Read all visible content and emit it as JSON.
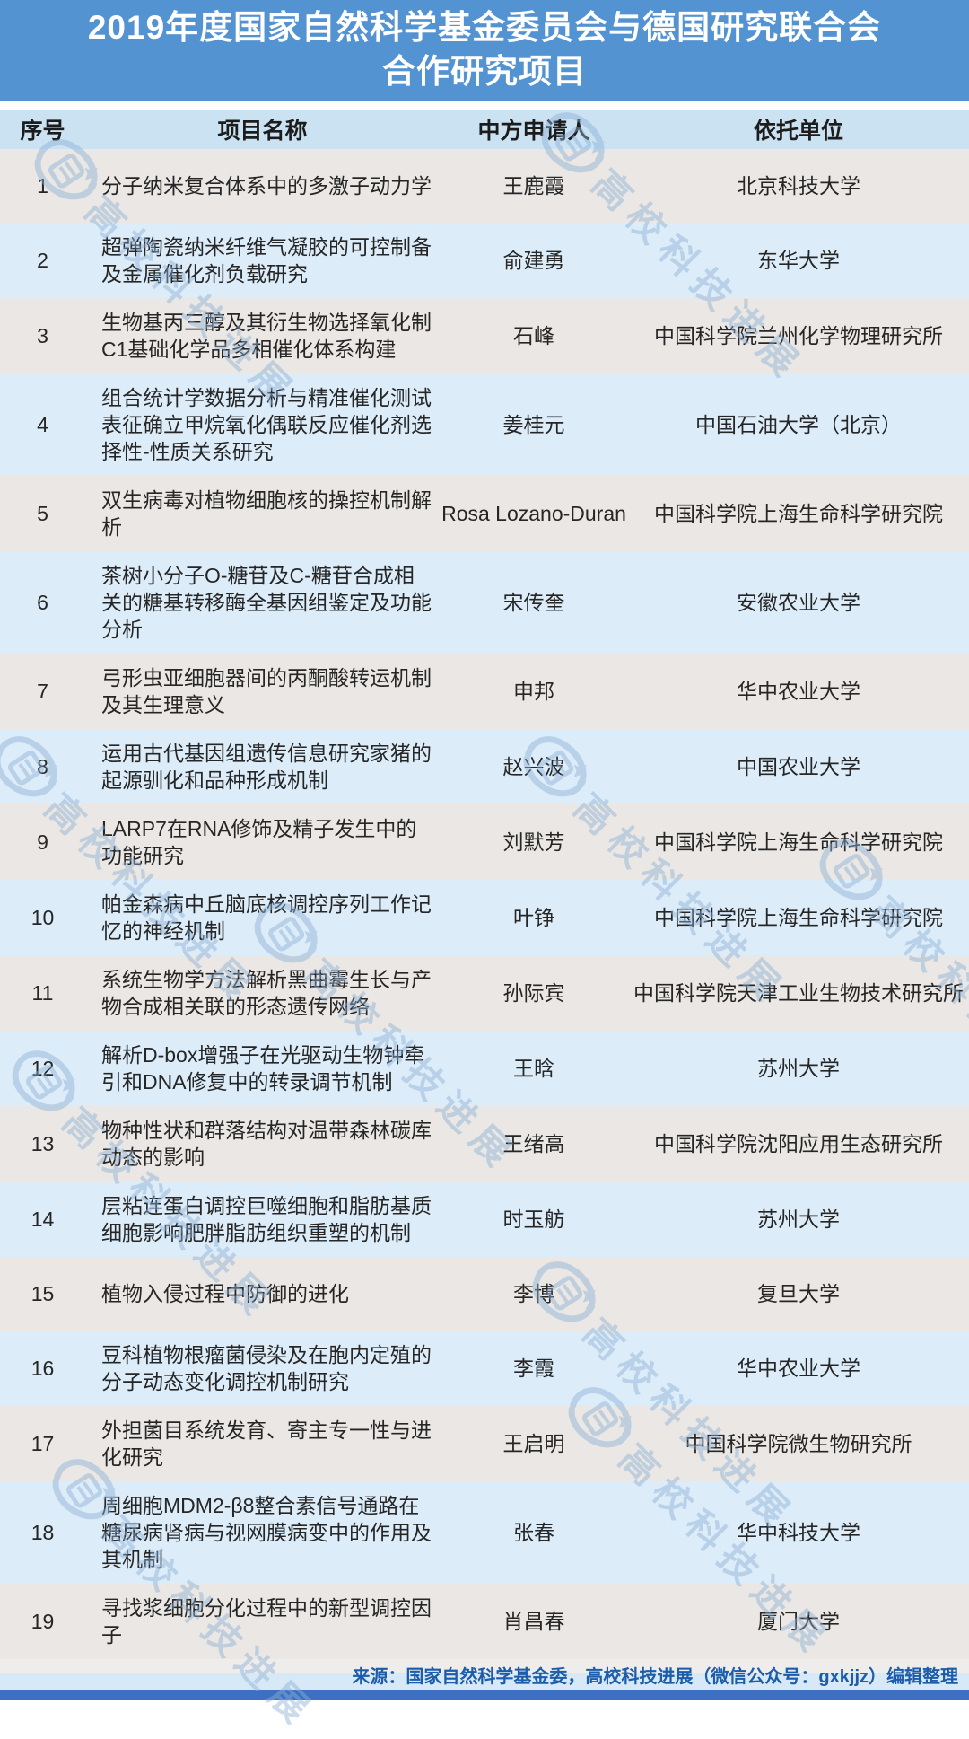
{
  "banner": {
    "title_line1": "2019年度国家自然科学基金委员会与德国研究联合会",
    "title_line2": "合作研究项目"
  },
  "table": {
    "headers": [
      "序号",
      "项目名称",
      "中方申请人",
      "依托单位"
    ],
    "rows": [
      {
        "no": "1",
        "project": "分子纳米复合体系中的多激子动力学",
        "applicant": "王鹿霞",
        "institution": "北京科技大学"
      },
      {
        "no": "2",
        "project": "超弹陶瓷纳米纤维气凝胶的可控制备及金属催化剂负载研究",
        "applicant": "俞建勇",
        "institution": "东华大学"
      },
      {
        "no": "3",
        "project": "生物基丙三醇及其衍生物选择氧化制C1基础化学品多相催化体系构建",
        "applicant": "石峰",
        "institution": "中国科学院兰州化学物理研究所"
      },
      {
        "no": "4",
        "project": "组合统计学数据分析与精准催化测试表征确立甲烷氧化偶联反应催化剂选择性-性质关系研究",
        "applicant": "姜桂元",
        "institution": "中国石油大学（北京）"
      },
      {
        "no": "5",
        "project": "双生病毒对植物细胞核的操控机制解析",
        "applicant": "Rosa Lozano-Duran",
        "institution": "中国科学院上海生命科学研究院"
      },
      {
        "no": "6",
        "project": "茶树小分子O-糖苷及C-糖苷合成相关的糖基转移酶全基因组鉴定及功能分析",
        "applicant": "宋传奎",
        "institution": "安徽农业大学"
      },
      {
        "no": "7",
        "project": "弓形虫亚细胞器间的丙酮酸转运机制及其生理意义",
        "applicant": "申邦",
        "institution": "华中农业大学"
      },
      {
        "no": "8",
        "project": "运用古代基因组遗传信息研究家猪的起源驯化和品种形成机制",
        "applicant": "赵兴波",
        "institution": "中国农业大学"
      },
      {
        "no": "9",
        "project": "LARP7在RNA修饰及精子发生中的功能研究",
        "applicant": "刘默芳",
        "institution": "中国科学院上海生命科学研究院"
      },
      {
        "no": "10",
        "project": "帕金森病中丘脑底核调控序列工作记忆的神经机制",
        "applicant": "叶铮",
        "institution": "中国科学院上海生命科学研究院"
      },
      {
        "no": "11",
        "project": "系统生物学方法解析黑曲霉生长与产物合成相关联的形态遗传网络",
        "applicant": "孙际宾",
        "institution": "中国科学院天津工业生物技术研究所"
      },
      {
        "no": "12",
        "project": "解析D-box增强子在光驱动生物钟牵引和DNA修复中的转录调节机制",
        "applicant": "王晗",
        "institution": "苏州大学"
      },
      {
        "no": "13",
        "project": "物种性状和群落结构对温带森林碳库动态的影响",
        "applicant": "王绪高",
        "institution": "中国科学院沈阳应用生态研究所"
      },
      {
        "no": "14",
        "project": "层粘连蛋白调控巨噬细胞和脂肪基质细胞影响肥胖脂肪组织重塑的机制",
        "applicant": "时玉舫",
        "institution": "苏州大学"
      },
      {
        "no": "15",
        "project": "植物入侵过程中防御的进化",
        "applicant": "李博",
        "institution": "复旦大学"
      },
      {
        "no": "16",
        "project": "豆科植物根瘤菌侵染及在胞内定殖的分子动态变化调控机制研究",
        "applicant": "李霞",
        "institution": "华中农业大学"
      },
      {
        "no": "17",
        "project": "外担菌目系统发育、寄主专一性与进化研究",
        "applicant": "王启明",
        "institution": "中国科学院微生物研究所"
      },
      {
        "no": "18",
        "project": "周细胞MDM2-β8整合素信号通路在糖尿病肾病与视网膜病变中的作用及其机制",
        "applicant": "张春",
        "institution": "华中科技大学"
      },
      {
        "no": "19",
        "project": "寻找浆细胞分化过程中的新型调控因子",
        "applicant": "肖昌春",
        "institution": "厦门大学"
      }
    ]
  },
  "footer": {
    "source": "来源：国家自然科学基金委，高校科技进展（微信公众号：gxkjjz）编辑整理"
  },
  "watermark": {
    "text": "高校科技进展"
  },
  "colors": {
    "banner_bg": "#5493d2",
    "banner_text": "#ffffff",
    "header_row_bg": "#cbe2f2",
    "row_odd_bg": "#eae7e4",
    "row_even_bg": "#dcedf9",
    "footer_text": "#1b5cab",
    "bottom_bar": "#3e6fc3",
    "watermark": "#8db1d6"
  }
}
